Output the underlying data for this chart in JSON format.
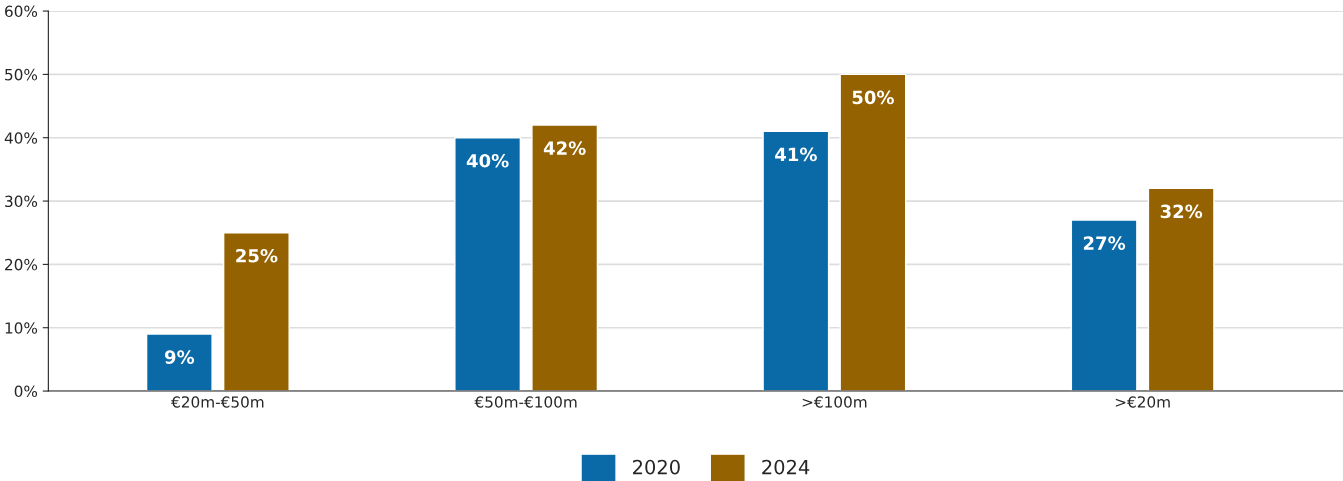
{
  "chart_data": {
    "type": "bar",
    "categories": [
      "€20m-€50m",
      "€50m-€100m",
      ">€100m",
      ">€20m"
    ],
    "series": [
      {
        "name": "2020",
        "color": "#0a6aa8",
        "values": [
          9,
          40,
          41,
          27
        ],
        "value_labels": [
          "9%",
          "40%",
          "41%",
          "27%"
        ]
      },
      {
        "name": "2024",
        "color": "#946200",
        "values": [
          25,
          42,
          50,
          32
        ],
        "value_labels": [
          "25%",
          "42%",
          "50%",
          "32%"
        ]
      }
    ],
    "ylim": [
      0,
      60
    ],
    "yticks": [
      {
        "value": 0,
        "label": "0%"
      },
      {
        "value": 10,
        "label": "10%"
      },
      {
        "value": 20,
        "label": "20%"
      },
      {
        "value": 30,
        "label": "30%"
      },
      {
        "value": 40,
        "label": "40%"
      },
      {
        "value": 50,
        "label": "50%"
      },
      {
        "value": 60,
        "label": "60%"
      }
    ],
    "grid": "y",
    "legend": "bottom"
  }
}
